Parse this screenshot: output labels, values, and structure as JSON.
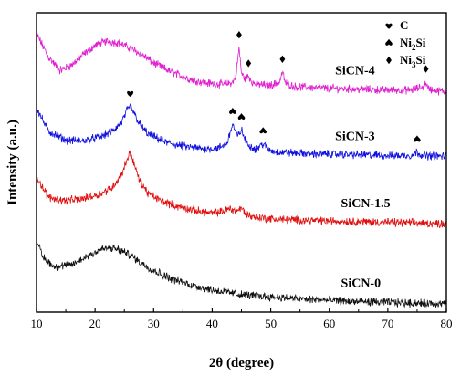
{
  "chart_data": {
    "type": "line",
    "xlabel": "2θ (degree)",
    "ylabel": "Intensity (a.u.)",
    "xlim": [
      10,
      80
    ],
    "x_ticks": [
      "10",
      "20",
      "30",
      "40",
      "50",
      "60",
      "70",
      "80"
    ],
    "y_ticks_shown": false,
    "grid": false,
    "legend_position": "top-right",
    "legend": [
      {
        "symbol": "heart",
        "label": "C"
      },
      {
        "symbol": "spade",
        "label_main": "Ni",
        "label_sub": "2",
        "label_tail": "Si"
      },
      {
        "symbol": "diamond",
        "label_main": "Ni",
        "label_sub": "3",
        "label_tail": "Si"
      }
    ],
    "series": [
      {
        "name": "SiCN-4",
        "color": "#e020d0",
        "offset": 3.05,
        "x": [
          10,
          12,
          14,
          16,
          18,
          20,
          22,
          24,
          26,
          28,
          30,
          33,
          36,
          39,
          42,
          43.5,
          44,
          44.6,
          45,
          45.6,
          46.2,
          47,
          48,
          50,
          51.5,
          52,
          52.5,
          54,
          58,
          62,
          66,
          70,
          74,
          76.2,
          76.5,
          76.8,
          78,
          80
        ],
        "y": [
          0.85,
          0.52,
          0.32,
          0.4,
          0.55,
          0.68,
          0.74,
          0.72,
          0.64,
          0.55,
          0.43,
          0.3,
          0.2,
          0.14,
          0.12,
          0.15,
          0.22,
          0.65,
          0.28,
          0.2,
          0.24,
          0.14,
          0.12,
          0.11,
          0.15,
          0.3,
          0.14,
          0.09,
          0.07,
          0.06,
          0.05,
          0.04,
          0.04,
          0.09,
          0.16,
          0.07,
          0.03,
          0.02
        ]
      },
      {
        "name": "SiCN-3",
        "color": "#1010e0",
        "offset": 2.12,
        "x": [
          10,
          12,
          15,
          18,
          21,
          23,
          24.5,
          25.5,
          26,
          26.5,
          27.5,
          29,
          32,
          35,
          38,
          41,
          42.5,
          43.5,
          44.3,
          45,
          45.5,
          46.2,
          47.5,
          48.7,
          49.6,
          51,
          55,
          60,
          65,
          70,
          74,
          75,
          76,
          78,
          80
        ],
        "y": [
          0.72,
          0.38,
          0.25,
          0.24,
          0.3,
          0.38,
          0.5,
          0.68,
          0.74,
          0.66,
          0.5,
          0.34,
          0.22,
          0.16,
          0.13,
          0.13,
          0.2,
          0.48,
          0.3,
          0.4,
          0.28,
          0.18,
          0.12,
          0.2,
          0.11,
          0.08,
          0.06,
          0.05,
          0.04,
          0.03,
          0.03,
          0.08,
          0.03,
          0.02,
          0.02
        ]
      },
      {
        "name": "SiCN-1.5",
        "color": "#e01010",
        "offset": 1.15,
        "x": [
          10,
          12,
          15,
          18,
          21,
          23,
          24.5,
          25.5,
          26,
          26.5,
          27.5,
          29,
          31,
          34,
          37,
          40,
          42,
          43,
          44,
          45,
          46,
          47,
          50,
          55,
          60,
          65,
          70,
          75,
          80
        ],
        "y": [
          0.7,
          0.4,
          0.35,
          0.38,
          0.45,
          0.55,
          0.72,
          0.95,
          1.05,
          0.92,
          0.66,
          0.46,
          0.36,
          0.27,
          0.21,
          0.17,
          0.2,
          0.24,
          0.2,
          0.24,
          0.15,
          0.12,
          0.09,
          0.07,
          0.06,
          0.05,
          0.04,
          0.03,
          0.02
        ]
      },
      {
        "name": "SiCN-0",
        "color": "#111111",
        "offset": 0.0,
        "x": [
          10,
          11,
          13,
          16,
          19,
          21,
          22.5,
          24,
          26,
          28,
          30,
          33,
          36,
          40,
          45,
          50,
          55,
          60,
          65,
          70,
          75,
          80
        ],
        "y": [
          0.95,
          0.7,
          0.55,
          0.58,
          0.72,
          0.8,
          0.82,
          0.8,
          0.72,
          0.6,
          0.5,
          0.38,
          0.3,
          0.22,
          0.15,
          0.12,
          0.09,
          0.07,
          0.05,
          0.04,
          0.03,
          0.02
        ]
      }
    ],
    "peak_markers": [
      {
        "symbol": "heart",
        "x": 26,
        "series": "SiCN-3"
      },
      {
        "symbol": "spade",
        "x": 43.5,
        "series": "SiCN-3"
      },
      {
        "symbol": "spade",
        "x": 45,
        "series": "SiCN-3"
      },
      {
        "symbol": "spade",
        "x": 48.7,
        "series": "SiCN-3"
      },
      {
        "symbol": "spade",
        "x": 75,
        "series": "SiCN-3"
      },
      {
        "symbol": "diamond",
        "x": 44.6,
        "series": "SiCN-4"
      },
      {
        "symbol": "diamond",
        "x": 46.2,
        "series": "SiCN-4"
      },
      {
        "symbol": "diamond",
        "x": 52,
        "series": "SiCN-4"
      },
      {
        "symbol": "diamond",
        "x": 76.5,
        "series": "SiCN-4"
      }
    ]
  }
}
